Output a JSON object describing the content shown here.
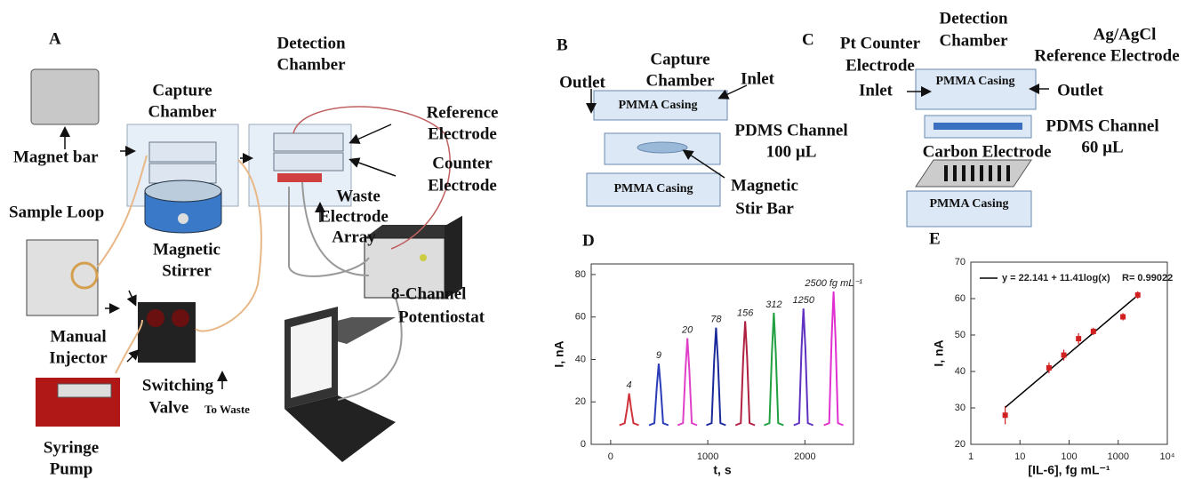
{
  "panel_a": {
    "letter": "A",
    "magnet_bar": "Magnet bar",
    "capture_chamber": [
      "Capture",
      "Chamber"
    ],
    "detection_chamber": [
      "Detection",
      "Chamber"
    ],
    "reference_electrode": [
      "Reference",
      "Electrode"
    ],
    "counter_electrode": [
      "Counter",
      "Electrode"
    ],
    "sample_loop": "Sample Loop",
    "waste": "Waste",
    "electrode_array": [
      "Electrode",
      "Array"
    ],
    "magnetic_stirrer": [
      "Magnetic",
      "Stirrer"
    ],
    "manual_injector": [
      "Manual",
      "Injector"
    ],
    "switching_valve": [
      "Switching",
      "Valve"
    ],
    "to_waste": "To Waste",
    "potentiostat": [
      "8-Channel",
      "Potentiostat"
    ],
    "syringe_pump": [
      "Syringe",
      "Pump"
    ]
  },
  "panel_b": {
    "letter": "B",
    "capture_chamber": [
      "Capture",
      "Chamber"
    ],
    "outlet": "Outlet",
    "inlet": "Inlet",
    "top_casing": "PMMA Casing",
    "pdms_channel": [
      "PDMS Channel",
      "100 µL"
    ],
    "bottom_casing": "PMMA Casing",
    "stir_bar": [
      "Magnetic",
      "Stir Bar"
    ]
  },
  "panel_c": {
    "letter": "C",
    "counter_electrode": [
      "Pt Counter",
      "Electrode"
    ],
    "detection_chamber": [
      "Detection",
      "Chamber"
    ],
    "reference_electrode": [
      "Ag/AgCl",
      "Reference Electrode"
    ],
    "inlet": "Inlet",
    "top_casing": "PMMA Casing",
    "outlet": "Outlet",
    "pdms_channel": [
      "PDMS Channel",
      "60 µL"
    ],
    "carbon_electrode": "Carbon Electrode",
    "bottom_casing": "PMMA Casing"
  },
  "chart_data": [
    {
      "type": "line",
      "title": "D",
      "xlabel": "t, s",
      "ylabel": "I, nA",
      "xlim": [
        -200,
        2500
      ],
      "xticks": [
        0,
        1000,
        2000
      ],
      "ylim": [
        0,
        85
      ],
      "yticks": [
        0,
        20,
        40,
        60,
        80
      ],
      "series": [
        {
          "name": "4",
          "color": "#d0343a",
          "x": [
            90,
            145,
            170,
            190,
            210,
            235,
            290
          ],
          "values": [
            9,
            10,
            17,
            24,
            17,
            10,
            9
          ]
        },
        {
          "name": "9",
          "color": "#2a3cb8",
          "x": [
            395,
            450,
            475,
            495,
            515,
            540,
            595
          ],
          "values": [
            9,
            10,
            27,
            38,
            27,
            10,
            9
          ]
        },
        {
          "name": "20",
          "color": "#e040c8",
          "x": [
            690,
            745,
            770,
            790,
            810,
            835,
            890
          ],
          "values": [
            9,
            10,
            35,
            50,
            35,
            10,
            9
          ]
        },
        {
          "name": "78",
          "color": "#1a2a9a",
          "x": [
            985,
            1040,
            1065,
            1085,
            1105,
            1130,
            1185
          ],
          "values": [
            9,
            10,
            39,
            55,
            39,
            10,
            9
          ]
        },
        {
          "name": "156",
          "color": "#b02040",
          "x": [
            1285,
            1340,
            1365,
            1385,
            1405,
            1430,
            1485
          ],
          "values": [
            9,
            10,
            41,
            58,
            41,
            10,
            9
          ]
        },
        {
          "name": "312",
          "color": "#20a040",
          "x": [
            1580,
            1635,
            1660,
            1680,
            1700,
            1725,
            1780
          ],
          "values": [
            9,
            10,
            43,
            62,
            43,
            10,
            9
          ]
        },
        {
          "name": "1250",
          "color": "#6030c0",
          "x": [
            1885,
            1940,
            1965,
            1985,
            2005,
            2030,
            2085
          ],
          "values": [
            9,
            10,
            45,
            64,
            45,
            10,
            9
          ]
        },
        {
          "name": "2500 fg mL⁻¹",
          "color": "#e030d0",
          "x": [
            2195,
            2250,
            2275,
            2295,
            2315,
            2340,
            2395
          ],
          "values": [
            9,
            10,
            50,
            72,
            50,
            10,
            9
          ]
        }
      ]
    },
    {
      "type": "scatter",
      "title": "E",
      "xlabel": "[IL-6], fg mL⁻¹",
      "ylabel": "I, nA",
      "xscale": "log",
      "xlim": [
        1,
        10000
      ],
      "xticks": [
        1,
        10,
        100,
        1000,
        {
          "value": 10000,
          "label": "10⁴"
        }
      ],
      "ylim": [
        20,
        70
      ],
      "yticks": [
        20,
        30,
        40,
        50,
        60,
        70
      ],
      "x": [
        5,
        39,
        78,
        156,
        312,
        1250,
        2500
      ],
      "values": [
        28,
        41,
        44.5,
        49,
        51,
        55,
        61
      ],
      "errors": [
        2.5,
        1.5,
        1.5,
        1.5,
        1,
        1,
        1
      ],
      "color": "#d02020",
      "fit": {
        "name": "y = 22.141 + 11.41log(x)",
        "color": "#000000",
        "x": [
          5,
          2500
        ],
        "values": [
          30.12,
          60.91
        ]
      },
      "annotation": "R= 0.99022",
      "legend": "upper left"
    }
  ]
}
